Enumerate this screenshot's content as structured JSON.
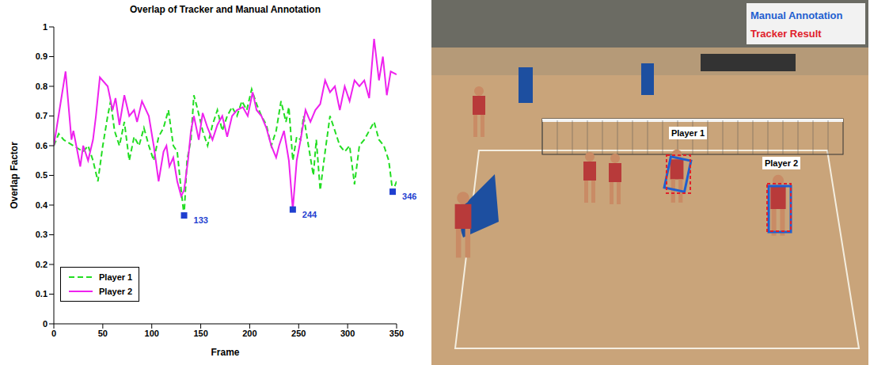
{
  "chart_data": {
    "type": "line",
    "title": "Overlap of Tracker and Manual Annotation",
    "x_label": "Frame",
    "y_label": "Overlap Factor",
    "xlim": [
      0,
      350
    ],
    "xticks": [
      0,
      50,
      100,
      150,
      200,
      250,
      300,
      350
    ],
    "ylim": [
      0,
      1
    ],
    "yticks": [
      0,
      0.1,
      0.2,
      0.3,
      0.4,
      0.5,
      0.6,
      0.7,
      0.8,
      0.9,
      1
    ],
    "grid": false,
    "legend": "lower left",
    "series": [
      {
        "name": "Player 1",
        "color": "#22dd22",
        "line_style": "dashed",
        "x": [
          0,
          5,
          10,
          20,
          30,
          35,
          40,
          45,
          50,
          55,
          58,
          62,
          67,
          72,
          77,
          82,
          87,
          92,
          97,
          102,
          107,
          112,
          117,
          122,
          126,
          130,
          133,
          136,
          140,
          143,
          147,
          152,
          157,
          162,
          167,
          172,
          177,
          182,
          187,
          192,
          197,
          202,
          207,
          212,
          217,
          222,
          227,
          232,
          237,
          240,
          244,
          248,
          252,
          255,
          260,
          265,
          268,
          272,
          277,
          282,
          287,
          292,
          297,
          302,
          307,
          312,
          317,
          322,
          327,
          332,
          337,
          342,
          346,
          350
        ],
        "values": [
          0.6,
          0.64,
          0.62,
          0.6,
          0.58,
          0.6,
          0.55,
          0.48,
          0.6,
          0.7,
          0.75,
          0.65,
          0.6,
          0.68,
          0.55,
          0.63,
          0.6,
          0.66,
          0.6,
          0.55,
          0.63,
          0.66,
          0.72,
          0.6,
          0.58,
          0.45,
          0.365,
          0.55,
          0.62,
          0.77,
          0.72,
          0.65,
          0.6,
          0.67,
          0.72,
          0.65,
          0.7,
          0.73,
          0.7,
          0.75,
          0.72,
          0.79,
          0.74,
          0.7,
          0.67,
          0.6,
          0.65,
          0.75,
          0.68,
          0.73,
          0.55,
          0.63,
          0.62,
          0.7,
          0.6,
          0.5,
          0.62,
          0.45,
          0.58,
          0.7,
          0.65,
          0.6,
          0.58,
          0.6,
          0.47,
          0.6,
          0.62,
          0.65,
          0.68,
          0.62,
          0.6,
          0.55,
          0.445,
          0.48
        ]
      },
      {
        "name": "Player 2",
        "color": "#ee22ee",
        "line_style": "solid",
        "x": [
          0,
          12,
          18,
          20,
          27,
          30,
          35,
          40,
          43,
          47,
          55,
          60,
          63,
          67,
          72,
          77,
          82,
          85,
          90,
          97,
          102,
          107,
          112,
          115,
          118,
          122,
          126,
          130,
          133,
          137,
          140,
          143,
          148,
          152,
          157,
          162,
          167,
          172,
          177,
          182,
          187,
          193,
          198,
          203,
          207,
          212,
          217,
          222,
          227,
          230,
          235,
          240,
          244,
          248,
          252,
          257,
          262,
          267,
          272,
          277,
          282,
          287,
          292,
          297,
          302,
          307,
          312,
          317,
          322,
          327,
          332,
          336,
          340,
          344,
          350
        ],
        "values": [
          0.6,
          0.85,
          0.62,
          0.65,
          0.53,
          0.6,
          0.55,
          0.62,
          0.7,
          0.83,
          0.8,
          0.72,
          0.76,
          0.67,
          0.77,
          0.7,
          0.72,
          0.68,
          0.75,
          0.7,
          0.6,
          0.48,
          0.58,
          0.6,
          0.53,
          0.56,
          0.48,
          0.43,
          0.45,
          0.55,
          0.65,
          0.7,
          0.62,
          0.71,
          0.66,
          0.62,
          0.67,
          0.7,
          0.63,
          0.7,
          0.72,
          0.73,
          0.7,
          0.78,
          0.72,
          0.7,
          0.66,
          0.6,
          0.56,
          0.6,
          0.65,
          0.55,
          0.385,
          0.55,
          0.62,
          0.72,
          0.68,
          0.72,
          0.74,
          0.82,
          0.78,
          0.8,
          0.72,
          0.8,
          0.75,
          0.82,
          0.8,
          0.82,
          0.76,
          0.96,
          0.82,
          0.9,
          0.77,
          0.85,
          0.84
        ]
      }
    ],
    "annotations": {
      "color": "#1f3fd0",
      "marker": "square",
      "points": [
        {
          "x": 133,
          "y": 0.365
        },
        {
          "x": 244,
          "y": 0.385
        },
        {
          "x": 346,
          "y": 0.445
        }
      ]
    }
  },
  "image": {
    "legend": [
      {
        "label": "Manual Annotation",
        "color": "#1f5fd0"
      },
      {
        "label": "Tracker Result",
        "color": "#e0202a"
      }
    ],
    "labels": [
      "Player 1",
      "Player 2"
    ]
  }
}
